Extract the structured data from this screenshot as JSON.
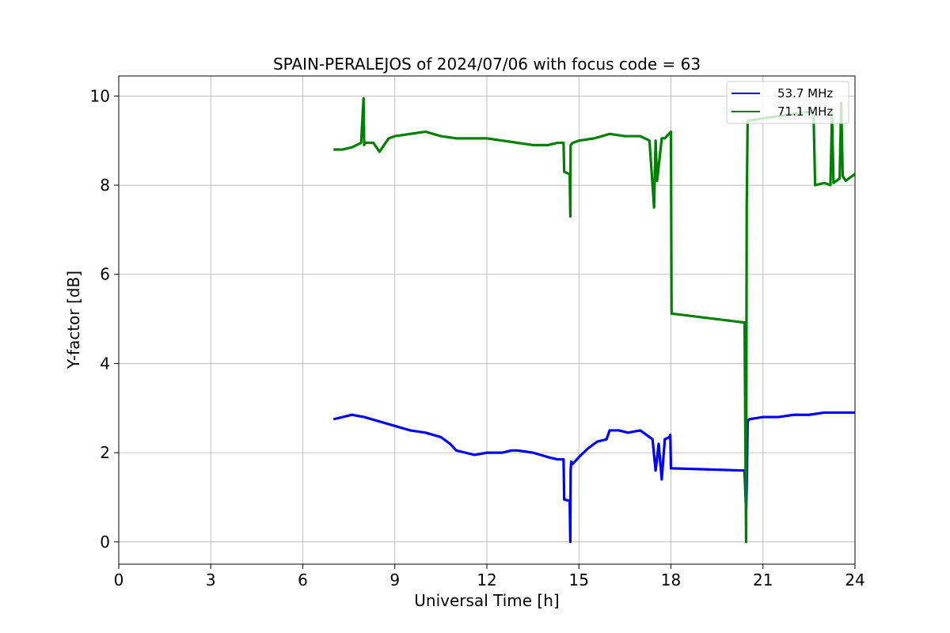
{
  "chart_data": {
    "type": "line",
    "title": "SPAIN-PERALEJOS of 2024/07/06 with focus code = 63",
    "xlabel": "Universal Time [h]",
    "ylabel": "Y-factor [dB]",
    "xlim": [
      0,
      24
    ],
    "ylim": [
      -0.5,
      10.45
    ],
    "xticks": [
      0,
      3,
      6,
      9,
      12,
      15,
      18,
      21,
      24
    ],
    "yticks": [
      0,
      2,
      4,
      6,
      8,
      10
    ],
    "grid": true,
    "legend_position": "top-right",
    "series": [
      {
        "name": "53.7 MHz",
        "color": "#0000ff",
        "x": [
          7.0,
          7.3,
          7.6,
          8.0,
          8.5,
          9.0,
          9.5,
          10.0,
          10.5,
          10.8,
          11.0,
          11.3,
          11.6,
          12.0,
          12.5,
          12.8,
          13.0,
          13.5,
          14.0,
          14.3,
          14.5,
          14.52,
          14.7,
          14.72,
          14.73,
          14.75,
          14.8,
          15.0,
          15.3,
          15.6,
          15.9,
          16.0,
          16.3,
          16.6,
          17.0,
          17.2,
          17.4,
          17.5,
          17.6,
          17.7,
          17.8,
          17.95,
          17.98,
          18.0,
          20.4,
          20.45,
          20.47,
          20.5,
          20.55,
          21.0,
          21.5,
          22.0,
          22.5,
          23.0,
          23.5,
          24.0
        ],
        "y": [
          2.75,
          2.8,
          2.85,
          2.8,
          2.7,
          2.6,
          2.5,
          2.45,
          2.35,
          2.2,
          2.05,
          2.0,
          1.95,
          2.0,
          2.0,
          2.05,
          2.05,
          2.0,
          1.9,
          1.85,
          1.85,
          0.95,
          0.92,
          0.0,
          1.6,
          1.8,
          1.75,
          1.9,
          2.1,
          2.25,
          2.3,
          2.5,
          2.5,
          2.45,
          2.5,
          2.4,
          2.3,
          1.6,
          2.2,
          1.4,
          2.3,
          2.35,
          2.4,
          1.65,
          1.6,
          0.7,
          1.2,
          2.7,
          2.75,
          2.8,
          2.8,
          2.85,
          2.85,
          2.9,
          2.9,
          2.9
        ]
      },
      {
        "name": "71.1 MHz",
        "color": "#008000",
        "x": [
          7.0,
          7.3,
          7.6,
          7.9,
          7.98,
          8.0,
          8.02,
          8.3,
          8.5,
          8.8,
          9.0,
          9.5,
          10.0,
          10.5,
          11.0,
          11.5,
          12.0,
          12.5,
          13.0,
          13.5,
          14.0,
          14.3,
          14.5,
          14.52,
          14.7,
          14.72,
          14.73,
          14.8,
          15.0,
          15.5,
          16.0,
          16.5,
          17.0,
          17.3,
          17.45,
          17.5,
          17.55,
          17.7,
          17.8,
          18.0,
          18.02,
          20.4,
          20.45,
          20.47,
          20.5,
          20.6,
          21.0,
          21.5,
          22.0,
          22.5,
          22.6,
          22.65,
          22.7,
          23.0,
          23.2,
          23.25,
          23.3,
          23.5,
          23.55,
          23.6,
          23.7,
          23.8,
          24.0
        ],
        "y": [
          8.8,
          8.8,
          8.85,
          8.95,
          9.95,
          8.9,
          8.95,
          8.95,
          8.75,
          9.05,
          9.1,
          9.15,
          9.2,
          9.1,
          9.05,
          9.05,
          9.05,
          9.0,
          8.95,
          8.9,
          8.9,
          8.95,
          8.95,
          8.3,
          8.25,
          7.3,
          8.9,
          8.95,
          9.0,
          9.05,
          9.15,
          9.1,
          9.1,
          9.0,
          7.5,
          9.0,
          8.1,
          9.05,
          9.05,
          9.2,
          5.12,
          4.92,
          0.0,
          7.5,
          9.45,
          9.45,
          9.5,
          9.55,
          9.6,
          9.65,
          9.6,
          9.55,
          8.0,
          8.05,
          8.0,
          9.6,
          8.05,
          8.15,
          9.85,
          8.2,
          8.1,
          8.15,
          8.25
        ]
      }
    ]
  }
}
